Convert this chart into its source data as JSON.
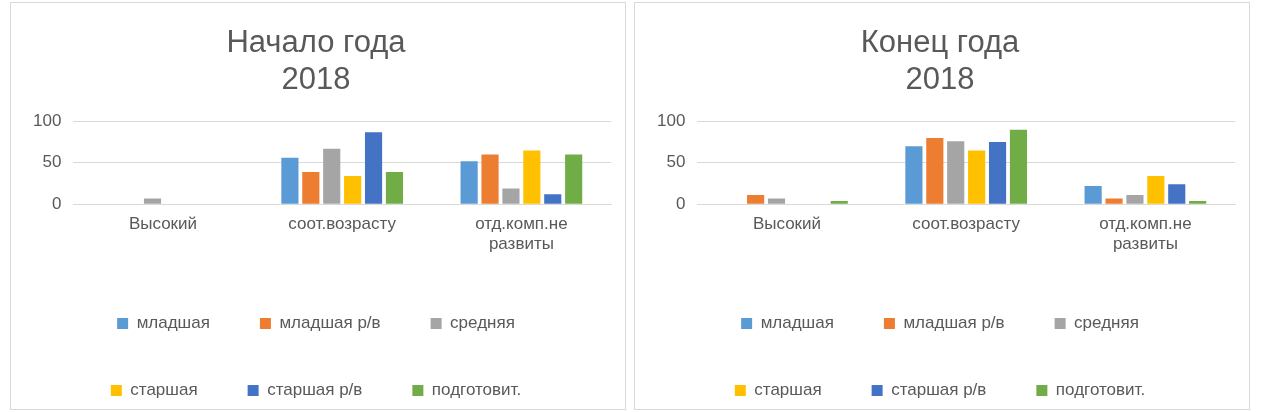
{
  "chart_data": [
    {
      "type": "bar",
      "title": "Начало года 2018",
      "categories": [
        "Высокий",
        "соот.возрасту",
        "отд.комп.не развиты"
      ],
      "series": [
        {
          "name": "младшая",
          "color": "#5b9bd5",
          "values": [
            0,
            56,
            52
          ]
        },
        {
          "name": "младшая р/в",
          "color": "#ed7d31",
          "values": [
            0,
            39,
            60
          ]
        },
        {
          "name": "средняя",
          "color": "#a5a5a5",
          "values": [
            7,
            67,
            19
          ]
        },
        {
          "name": "старшая",
          "color": "#ffc000",
          "values": [
            0,
            34,
            65
          ]
        },
        {
          "name": "старшая р/в",
          "color": "#4472c4",
          "values": [
            0,
            87,
            12
          ]
        },
        {
          "name": "подготовит.",
          "color": "#70ad47",
          "values": [
            0,
            39,
            60
          ]
        }
      ],
      "ylim": [
        0,
        100
      ],
      "yticks": [
        0,
        50,
        100
      ],
      "grid": "y",
      "legend": "bottom"
    },
    {
      "type": "bar",
      "title": "Конец года 2018",
      "categories": [
        "Высокий",
        "соот.возрасту",
        "отд.комп.не развиты"
      ],
      "series": [
        {
          "name": "младшая",
          "color": "#5b9bd5",
          "values": [
            0,
            70,
            22
          ]
        },
        {
          "name": "младшая р/в",
          "color": "#ed7d31",
          "values": [
            11,
            80,
            7
          ]
        },
        {
          "name": "средняя",
          "color": "#a5a5a5",
          "values": [
            7,
            76,
            11
          ]
        },
        {
          "name": "старшая",
          "color": "#ffc000",
          "values": [
            0,
            65,
            34
          ]
        },
        {
          "name": "старшая р/в",
          "color": "#4472c4",
          "values": [
            0,
            75,
            24
          ]
        },
        {
          "name": "подготовит.",
          "color": "#70ad47",
          "values": [
            4,
            90,
            4
          ]
        }
      ],
      "ylim": [
        0,
        100
      ],
      "yticks": [
        0,
        50,
        100
      ],
      "grid": "y",
      "legend": "bottom"
    }
  ]
}
